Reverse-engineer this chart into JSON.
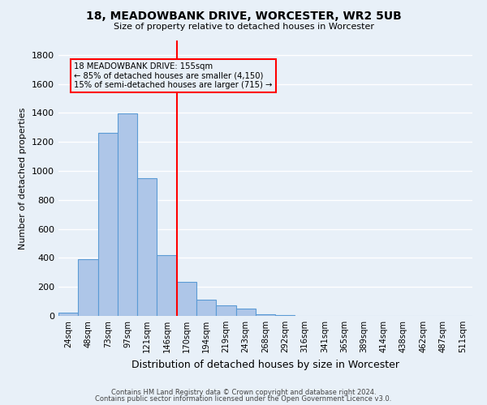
{
  "title": "18, MEADOWBANK DRIVE, WORCESTER, WR2 5UB",
  "subtitle": "Size of property relative to detached houses in Worcester",
  "xlabel": "Distribution of detached houses by size in Worcester",
  "ylabel": "Number of detached properties",
  "bar_labels": [
    "24sqm",
    "48sqm",
    "73sqm",
    "97sqm",
    "121sqm",
    "146sqm",
    "170sqm",
    "194sqm",
    "219sqm",
    "243sqm",
    "268sqm",
    "292sqm",
    "316sqm",
    "341sqm",
    "365sqm",
    "389sqm",
    "414sqm",
    "438sqm",
    "462sqm",
    "487sqm",
    "511sqm"
  ],
  "bar_values": [
    25,
    390,
    1265,
    1395,
    950,
    420,
    235,
    110,
    70,
    50,
    10,
    3,
    1,
    0,
    0,
    0,
    0,
    0,
    0,
    0,
    0
  ],
  "bar_color": "#aec6e8",
  "bar_edge_color": "#5b9bd5",
  "property_line_x": 5.5,
  "property_line_color": "red",
  "annotation_line1": "18 MEADOWBANK DRIVE: 155sqm",
  "annotation_line2": "← 85% of detached houses are smaller (4,150)",
  "annotation_line3": "15% of semi-detached houses are larger (715) →",
  "ylim": [
    0,
    1900
  ],
  "yticks": [
    0,
    200,
    400,
    600,
    800,
    1000,
    1200,
    1400,
    1600,
    1800
  ],
  "footer_line1": "Contains HM Land Registry data © Crown copyright and database right 2024.",
  "footer_line2": "Contains public sector information licensed under the Open Government Licence v3.0.",
  "bg_color": "#e8f0f8",
  "grid_color": "white"
}
